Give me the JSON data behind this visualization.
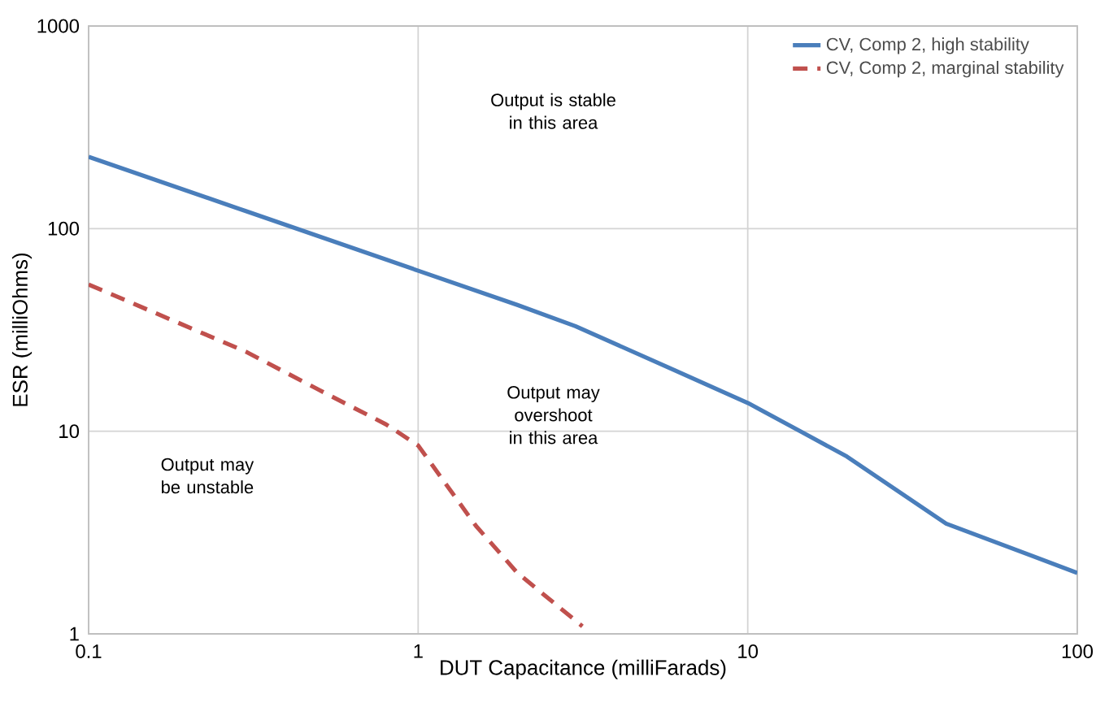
{
  "chart_data": {
    "type": "line",
    "xlabel": "DUT Capacitance (milliFarads)",
    "ylabel": "ESR (milliOhms)",
    "log": "xy",
    "grid": true,
    "legend": "top right",
    "xlim": [
      0.1,
      100
    ],
    "ylim": [
      1,
      1000
    ],
    "xticks": [
      0.1,
      1,
      10,
      100
    ],
    "yticks": [
      1,
      10,
      100,
      1000
    ],
    "annotations": [
      "Output is stable in this area",
      "Output may overshoot in this area",
      "Output may be unstable"
    ],
    "series": [
      {
        "name": "CV, Comp 2, high stability",
        "color": "#4a7ebb",
        "line_style": "solid",
        "x": [
          0.1,
          0.3,
          1,
          2,
          3,
          6,
          10,
          14.6,
          20,
          40,
          100
        ],
        "values": [
          226,
          122,
          62,
          42,
          33,
          20,
          13.8,
          9.9,
          7.5,
          3.5,
          2.0
        ]
      },
      {
        "name": "CV, Comp 2, marginal stability",
        "color": "#c0504d",
        "line_style": "dashed",
        "x": [
          0.1,
          0.3,
          0.5,
          0.8,
          1,
          1.5,
          2,
          3.15
        ],
        "values": [
          53,
          24.7,
          16,
          10.8,
          8.5,
          3.4,
          2.0,
          1.09
        ]
      }
    ]
  }
}
